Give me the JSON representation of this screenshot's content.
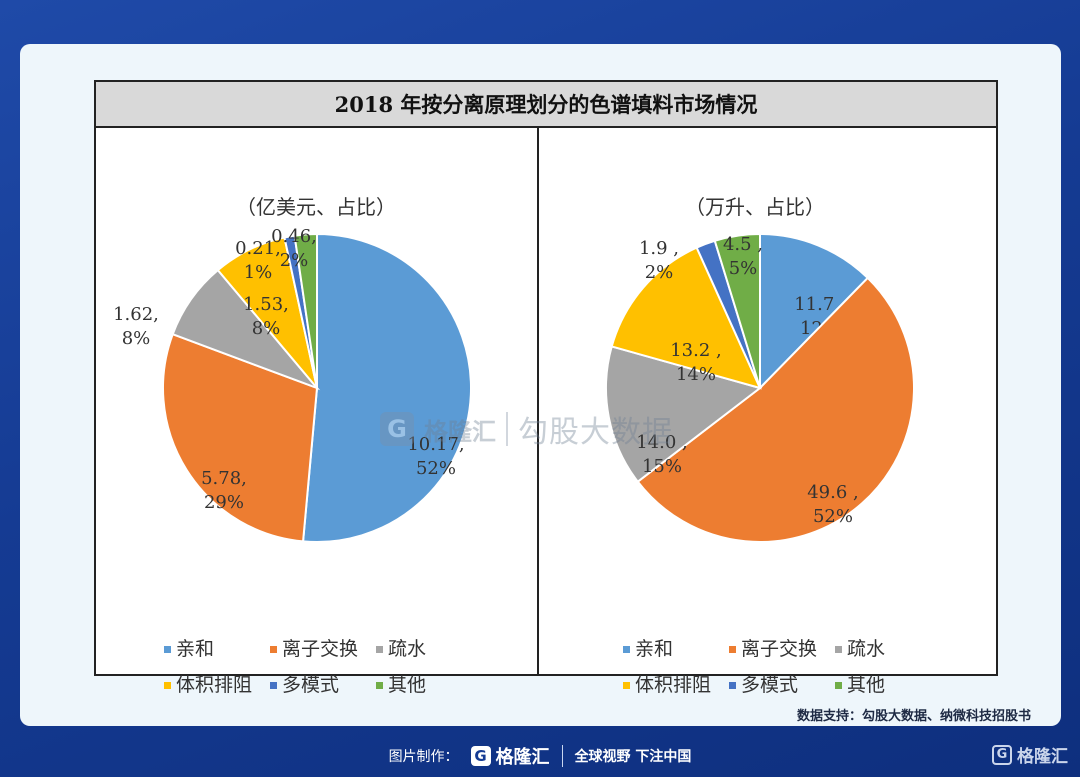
{
  "title": "2018 年按分离原理划分的色谱填料市场情况",
  "colors": {
    "亲和": "#5b9bd5",
    "离子交换": "#ed7d31",
    "疏水": "#a5a5a5",
    "体积排阻": "#ffc000",
    "多模式": "#4472c4",
    "其他": "#70ad47"
  },
  "chart_data": [
    {
      "type": "pie",
      "subtitle": "（亿美元、占比）",
      "categories": [
        "亲和",
        "离子交换",
        "疏水",
        "体积排阻",
        "多模式",
        "其他"
      ],
      "values": [
        10.17,
        5.78,
        1.62,
        1.53,
        0.21,
        0.46
      ],
      "percent_labels": [
        "52%",
        "29%",
        "8%",
        "8%",
        "1%",
        "2%"
      ],
      "value_labels": [
        "10.17,",
        "5.78,",
        "1.62,",
        "1.53,",
        "0.21,",
        "0.46,"
      ],
      "legend": [
        "亲和",
        "离子交换",
        "疏水",
        "体积排阻",
        "多模式",
        "其他"
      ]
    },
    {
      "type": "pie",
      "subtitle": "（万升、占比）",
      "categories": [
        "亲和",
        "离子交换",
        "疏水",
        "体积排阻",
        "多模式",
        "其他"
      ],
      "values": [
        11.7,
        49.6,
        14.0,
        13.2,
        1.9,
        4.5
      ],
      "percent_labels": [
        "12%",
        "52%",
        "15%",
        "14%",
        "2%",
        "5%"
      ],
      "value_labels": [
        "11.7 ,",
        "49.6 ,",
        "14.0 ,",
        "13.2 ,",
        "1.9 ,",
        "4.5 ,"
      ],
      "legend": [
        "亲和",
        "离子交换",
        "疏水",
        "体积排阻",
        "多模式",
        "其他"
      ]
    }
  ],
  "watermark": {
    "brand": "格隆汇",
    "text": "勾股大数据"
  },
  "source": "数据支持：勾股大数据、纳微科技招股书",
  "footer": {
    "made_by": "图片制作：",
    "brand": "格隆汇",
    "slogan": "全球视野 下注中国"
  }
}
